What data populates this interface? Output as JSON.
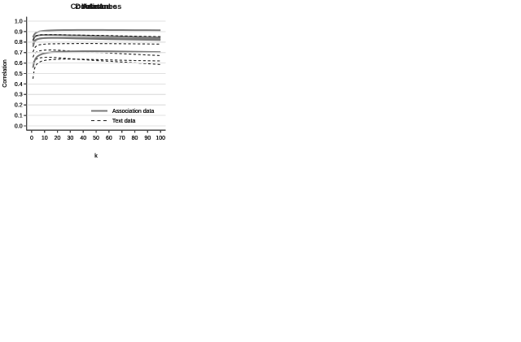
{
  "figure": {
    "colors": {
      "association_line": "#787878",
      "text_line": "#1c1c1c",
      "gridline": "#e1e1e1",
      "axis": "#444444",
      "text": "#1a1a1a",
      "background": "#ffffff"
    },
    "legend_labels": [
      "Association data",
      "Text data"
    ]
  },
  "chart_data": [
    {
      "type": "line",
      "title": "Valence",
      "xlabel": "k",
      "ylabel": "Correlation",
      "xlim": [
        0,
        100
      ],
      "ylim": [
        0.0,
        1.0
      ],
      "xticks": [
        0,
        10,
        20,
        30,
        40,
        50,
        60,
        70,
        80,
        90,
        100
      ],
      "yticks": [
        0.0,
        0.1,
        0.2,
        0.3,
        0.4,
        0.5,
        0.6,
        0.7,
        0.8,
        0.9,
        1.0
      ],
      "grid": "horizontal",
      "legend_position": "bottom-right",
      "x": [
        1,
        2,
        3,
        4,
        5,
        6,
        8,
        10,
        12,
        15,
        20,
        25,
        30,
        35,
        40,
        50,
        60,
        70,
        80,
        90,
        100
      ],
      "series": [
        {
          "name": "Association data",
          "style": "solid",
          "values": [
            0.845,
            0.872,
            0.886,
            0.893,
            0.898,
            0.901,
            0.905,
            0.908,
            0.91,
            0.912,
            0.914,
            0.915,
            0.915,
            0.916,
            0.916,
            0.916,
            0.915,
            0.915,
            0.914,
            0.914,
            0.913
          ]
        },
        {
          "name": "Text data",
          "style": "dashed",
          "values": [
            0.705,
            0.737,
            0.755,
            0.764,
            0.77,
            0.774,
            0.778,
            0.78,
            0.782,
            0.783,
            0.784,
            0.785,
            0.785,
            0.786,
            0.786,
            0.786,
            0.785,
            0.784,
            0.783,
            0.782,
            0.78
          ]
        }
      ]
    },
    {
      "type": "line",
      "title": "Arousal",
      "xlabel": "k",
      "ylabel": "Correlation",
      "xlim": [
        0,
        100
      ],
      "ylim": [
        0.0,
        1.0
      ],
      "xticks": [
        0,
        10,
        20,
        30,
        40,
        50,
        60,
        70,
        80,
        90,
        100
      ],
      "yticks": [
        0.0,
        0.1,
        0.2,
        0.3,
        0.4,
        0.5,
        0.6,
        0.7,
        0.8,
        0.9,
        1.0
      ],
      "grid": "horizontal",
      "legend_position": "bottom-right",
      "x": [
        1,
        2,
        3,
        4,
        5,
        6,
        8,
        10,
        12,
        15,
        20,
        25,
        30,
        35,
        40,
        50,
        60,
        70,
        80,
        90,
        100
      ],
      "series": [
        {
          "name": "Association data",
          "style": "solid",
          "values": [
            0.778,
            0.808,
            0.82,
            0.827,
            0.831,
            0.834,
            0.837,
            0.839,
            0.84,
            0.841,
            0.841,
            0.841,
            0.841,
            0.84,
            0.84,
            0.839,
            0.837,
            0.835,
            0.833,
            0.831,
            0.829
          ]
        },
        {
          "name": "Text data",
          "style": "dashed",
          "values": [
            0.655,
            0.686,
            0.699,
            0.707,
            0.712,
            0.716,
            0.72,
            0.723,
            0.724,
            0.725,
            0.723,
            0.719,
            0.715,
            0.711,
            0.708,
            0.701,
            0.695,
            0.689,
            0.683,
            0.677,
            0.671
          ]
        }
      ]
    },
    {
      "type": "line",
      "title": "Dominance",
      "xlabel": "k",
      "ylabel": "Correlation",
      "xlim": [
        0,
        100
      ],
      "ylim": [
        0.0,
        1.0
      ],
      "xticks": [
        0,
        10,
        20,
        30,
        40,
        50,
        60,
        70,
        80,
        90,
        100
      ],
      "yticks": [
        0.0,
        0.1,
        0.2,
        0.3,
        0.4,
        0.5,
        0.6,
        0.7,
        0.8,
        0.9,
        1.0
      ],
      "grid": "horizontal",
      "legend_position": "bottom-right",
      "x": [
        1,
        2,
        3,
        4,
        5,
        6,
        8,
        10,
        12,
        15,
        20,
        25,
        30,
        35,
        40,
        50,
        60,
        70,
        80,
        90,
        100
      ],
      "series": [
        {
          "name": "Association data",
          "style": "solid",
          "values": [
            0.755,
            0.799,
            0.816,
            0.824,
            0.829,
            0.832,
            0.836,
            0.838,
            0.839,
            0.84,
            0.839,
            0.838,
            0.836,
            0.834,
            0.833,
            0.83,
            0.828,
            0.826,
            0.824,
            0.822,
            0.82
          ]
        },
        {
          "name": "Text data",
          "style": "dashed",
          "values": [
            0.595,
            0.621,
            0.633,
            0.64,
            0.645,
            0.648,
            0.652,
            0.654,
            0.655,
            0.655,
            0.651,
            0.646,
            0.641,
            0.636,
            0.632,
            0.624,
            0.617,
            0.61,
            0.602,
            0.594,
            0.586
          ]
        }
      ]
    },
    {
      "type": "line",
      "title": "AoA",
      "xlabel": "k",
      "ylabel": "Correlation",
      "xlim": [
        0,
        100
      ],
      "ylim": [
        0.0,
        1.0
      ],
      "xticks": [
        0,
        10,
        20,
        30,
        40,
        50,
        60,
        70,
        80,
        90,
        100
      ],
      "yticks": [
        0.0,
        0.1,
        0.2,
        0.3,
        0.4,
        0.5,
        0.6,
        0.7,
        0.8,
        0.9,
        1.0
      ],
      "grid": "horizontal",
      "legend_position": "bottom-right",
      "x": [
        1,
        2,
        3,
        4,
        5,
        6,
        8,
        10,
        12,
        15,
        20,
        25,
        30,
        35,
        40,
        50,
        60,
        70,
        80,
        90,
        100
      ],
      "series": [
        {
          "name": "Association data",
          "style": "solid",
          "values": [
            0.555,
            0.614,
            0.642,
            0.658,
            0.668,
            0.675,
            0.686,
            0.693,
            0.698,
            0.703,
            0.707,
            0.709,
            0.711,
            0.712,
            0.713,
            0.713,
            0.712,
            0.71,
            0.708,
            0.706,
            0.704
          ]
        },
        {
          "name": "Text data",
          "style": "dashed",
          "values": [
            0.45,
            0.538,
            0.573,
            0.59,
            0.601,
            0.609,
            0.619,
            0.625,
            0.629,
            0.633,
            0.636,
            0.638,
            0.638,
            0.637,
            0.636,
            0.633,
            0.63,
            0.627,
            0.624,
            0.622,
            0.62
          ]
        }
      ]
    },
    {
      "type": "line",
      "title": "Concreteness",
      "xlabel": "k",
      "ylabel": "Correlation",
      "xlim": [
        0,
        100
      ],
      "ylim": [
        0.0,
        1.0
      ],
      "xticks": [
        0,
        10,
        20,
        30,
        40,
        50,
        60,
        70,
        80,
        90,
        100
      ],
      "yticks": [
        0.0,
        0.1,
        0.2,
        0.3,
        0.4,
        0.5,
        0.6,
        0.7,
        0.8,
        0.9,
        1.0
      ],
      "grid": "horizontal",
      "legend_position": "bottom-right",
      "x": [
        1,
        2,
        3,
        4,
        5,
        6,
        8,
        10,
        12,
        15,
        20,
        25,
        30,
        35,
        40,
        50,
        60,
        70,
        80,
        90,
        100
      ],
      "series": [
        {
          "name": "Association data",
          "style": "solid",
          "values": [
            0.81,
            0.843,
            0.855,
            0.86,
            0.863,
            0.865,
            0.867,
            0.868,
            0.868,
            0.868,
            0.867,
            0.866,
            0.864,
            0.863,
            0.862,
            0.859,
            0.856,
            0.853,
            0.85,
            0.847,
            0.845
          ]
        },
        {
          "name": "Text data",
          "style": "dashed",
          "values": [
            0.82,
            0.848,
            0.858,
            0.863,
            0.866,
            0.868,
            0.87,
            0.871,
            0.871,
            0.871,
            0.87,
            0.869,
            0.868,
            0.867,
            0.866,
            0.864,
            0.862,
            0.859,
            0.856,
            0.854,
            0.852
          ]
        }
      ]
    }
  ]
}
